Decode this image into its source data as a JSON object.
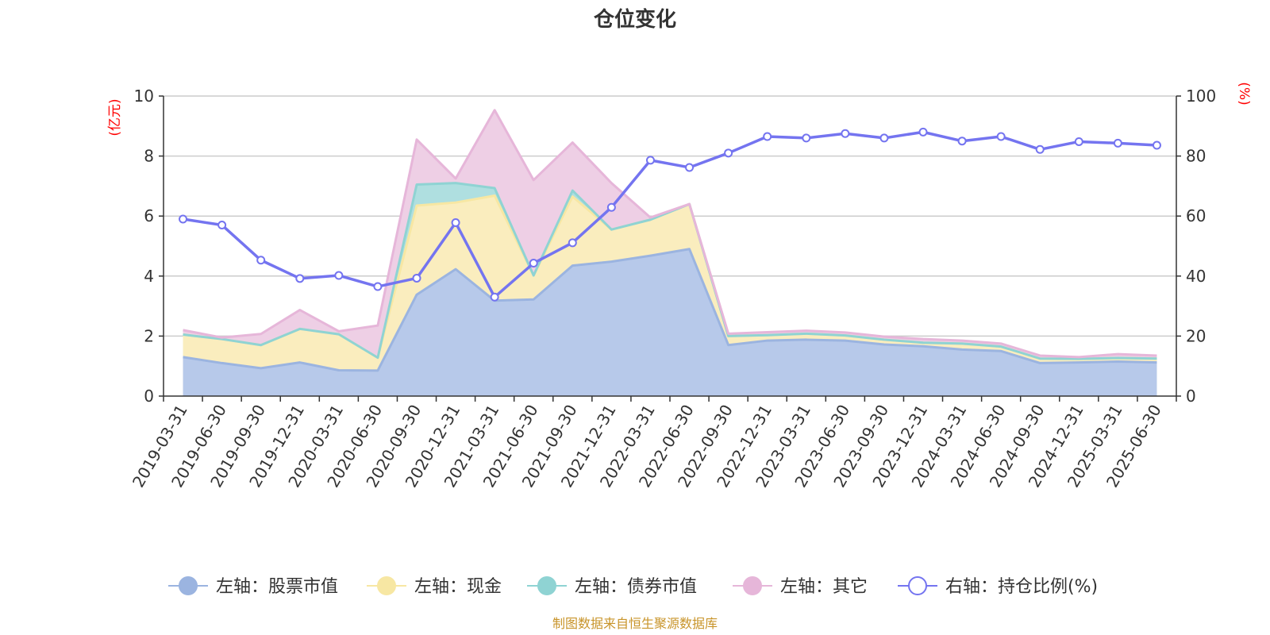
{
  "chart_data": {
    "type": "area",
    "title": "仓位变化",
    "left_axis_unit": "(亿元)",
    "right_axis_unit": "(%)",
    "ylim": [
      0,
      10
    ],
    "y2lim": [
      0,
      100
    ],
    "yticks": [
      "0",
      "2",
      "4",
      "6",
      "8",
      "10"
    ],
    "y2ticks": [
      "0",
      "20",
      "40",
      "60",
      "80",
      "100"
    ],
    "grid": true,
    "legend_position": "bottom",
    "categories": [
      "2019-03-31",
      "2019-06-30",
      "2019-09-30",
      "2019-12-31",
      "2020-03-31",
      "2020-06-30",
      "2020-09-30",
      "2020-12-31",
      "2021-03-31",
      "2021-06-30",
      "2021-09-30",
      "2021-12-31",
      "2022-03-31",
      "2022-06-30",
      "2022-09-30",
      "2022-12-31",
      "2023-03-31",
      "2023-06-30",
      "2023-09-30",
      "2023-12-31",
      "2024-03-31",
      "2024-06-30",
      "2024-09-30",
      "2024-12-31",
      "2025-03-31",
      "2025-06-30"
    ],
    "series": [
      {
        "name": "左轴：股票市值",
        "axis": "left",
        "kind": "stacked-area",
        "color": "#9bb4e0",
        "fill": "#b7c9ea",
        "values": [
          1.3,
          1.1,
          0.93,
          1.12,
          0.86,
          0.85,
          3.38,
          4.23,
          3.18,
          3.22,
          4.35,
          4.48,
          4.68,
          4.9,
          1.7,
          1.85,
          1.88,
          1.85,
          1.72,
          1.66,
          1.55,
          1.5,
          1.1,
          1.12,
          1.15,
          1.12
        ]
      },
      {
        "name": "左轴：现金",
        "axis": "left",
        "kind": "stacked-area",
        "color": "#f7e7a3",
        "fill": "#faedbe",
        "values": [
          0.75,
          0.8,
          0.77,
          1.12,
          1.2,
          0.43,
          2.97,
          2.22,
          3.5,
          0.8,
          2.3,
          1.07,
          1.2,
          1.5,
          0.3,
          0.18,
          0.2,
          0.17,
          0.16,
          0.12,
          0.2,
          0.15,
          0.15,
          0.12,
          0.12,
          0.13
        ]
      },
      {
        "name": "左轴：债券市值",
        "axis": "left",
        "kind": "stacked-area",
        "color": "#8fd3d3",
        "fill": "#afdfe0",
        "values": [
          0,
          0,
          0,
          0,
          0,
          0,
          0.7,
          0.65,
          0.25,
          0,
          0.2,
          0,
          0,
          0,
          0,
          0,
          0,
          0,
          0,
          0,
          0,
          0,
          0,
          0,
          0,
          0
        ]
      },
      {
        "name": "左轴：其它",
        "axis": "left",
        "kind": "stacked-area",
        "color": "#e6b6d9",
        "fill": "#eecfe5",
        "values": [
          0.15,
          0.05,
          0.37,
          0.63,
          0.1,
          1.07,
          1.5,
          0.15,
          2.6,
          3.18,
          1.6,
          1.55,
          0.07,
          0,
          0.08,
          0.1,
          0.1,
          0.1,
          0.1,
          0.12,
          0.1,
          0.1,
          0.1,
          0.06,
          0.13,
          0.1
        ]
      },
      {
        "name": "右轴：持仓比例(%)",
        "axis": "right",
        "kind": "line",
        "color": "#7474f0",
        "values": [
          59,
          57,
          45.3,
          39.2,
          40.2,
          36.5,
          39.3,
          57.8,
          33,
          44.3,
          51.1,
          62.9,
          78.6,
          76.2,
          81,
          86.5,
          86,
          87.5,
          86,
          88,
          85,
          86.5,
          82.2,
          84.8,
          84.3,
          83.6
        ]
      }
    ]
  },
  "source_note": "制图数据来自恒生聚源数据库"
}
